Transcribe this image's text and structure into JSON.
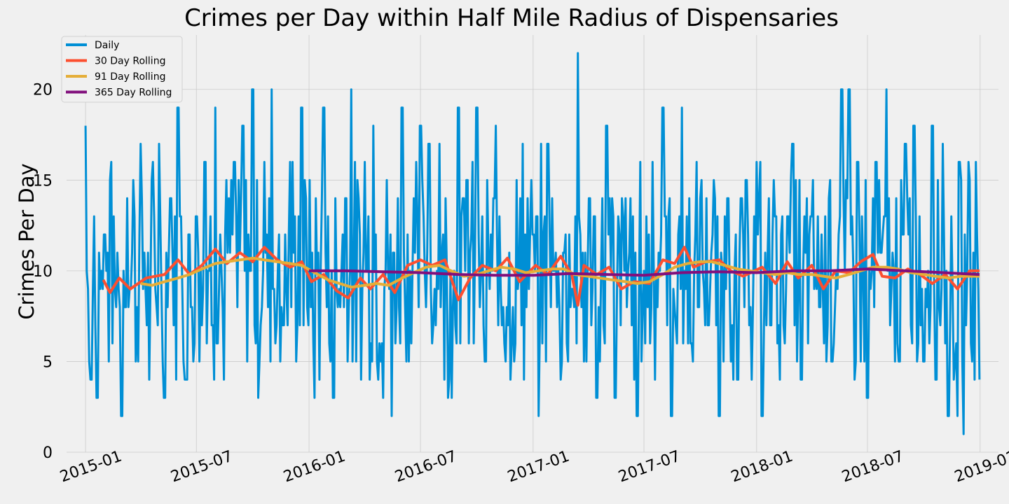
{
  "chart_data": {
    "type": "line",
    "title": "Crimes per Day within Half Mile Radius of Dispensaries",
    "xlabel": "",
    "ylabel": "Crimes Per Day",
    "x_range": [
      "2014-12-01",
      "2019-01-31"
    ],
    "ylim": [
      0,
      23
    ],
    "grid": true,
    "legend_position": "top-left",
    "x_ticks": [
      "2015-01",
      "2015-07",
      "2016-01",
      "2016-07",
      "2017-01",
      "2017-07",
      "2018-01",
      "2018-07",
      "2019-01"
    ],
    "y_ticks": [
      0,
      5,
      10,
      15,
      20
    ],
    "start_date": "2015-01-01",
    "end_date": "2018-12-31",
    "series": [
      {
        "name": "Daily",
        "color": "#008fd5",
        "points": [
          [
            "2015-01-01",
            18
          ],
          [
            "2015-01-05",
            9
          ],
          [
            "2015-01-10",
            4
          ],
          [
            "2015-01-15",
            13
          ],
          [
            "2015-01-20",
            3
          ],
          [
            "2015-02-01",
            12
          ],
          [
            "2015-02-10",
            15
          ],
          [
            "2015-02-20",
            8
          ],
          [
            "2015-03-01",
            2
          ],
          [
            "2015-03-10",
            14
          ],
          [
            "2015-03-20",
            15
          ],
          [
            "2015-04-01",
            17
          ],
          [
            "2015-04-15",
            4
          ],
          [
            "2015-05-01",
            17
          ],
          [
            "2015-05-10",
            3
          ],
          [
            "2015-05-20",
            14
          ],
          [
            "2015-06-01",
            19
          ],
          [
            "2015-06-15",
            4
          ],
          [
            "2015-07-01",
            13
          ],
          [
            "2015-07-15",
            16
          ],
          [
            "2015-08-01",
            19
          ],
          [
            "2015-08-15",
            4
          ],
          [
            "2015-09-01",
            16
          ],
          [
            "2015-09-15",
            18
          ],
          [
            "2015-10-01",
            20
          ],
          [
            "2015-10-10",
            3
          ],
          [
            "2015-10-20",
            16
          ],
          [
            "2015-11-01",
            20
          ],
          [
            "2015-11-15",
            5
          ],
          [
            "2015-12-01",
            16
          ],
          [
            "2015-12-20",
            19
          ],
          [
            "2016-01-10",
            3
          ],
          [
            "2016-01-25",
            19
          ],
          [
            "2016-02-10",
            3
          ],
          [
            "2016-03-01",
            14
          ],
          [
            "2016-03-10",
            20
          ],
          [
            "2016-04-01",
            16
          ],
          [
            "2016-04-15",
            18
          ],
          [
            "2016-05-01",
            3
          ],
          [
            "2016-05-15",
            2
          ],
          [
            "2016-06-01",
            19
          ],
          [
            "2016-06-20",
            14
          ],
          [
            "2016-07-01",
            18
          ],
          [
            "2016-07-15",
            17
          ],
          [
            "2016-08-01",
            17
          ],
          [
            "2016-08-15",
            3
          ],
          [
            "2016-09-01",
            19
          ],
          [
            "2016-09-15",
            15
          ],
          [
            "2016-10-01",
            19
          ],
          [
            "2016-10-15",
            5
          ],
          [
            "2016-11-01",
            18
          ],
          [
            "2016-12-01",
            5
          ],
          [
            "2016-12-15",
            17
          ],
          [
            "2017-01-01",
            12
          ],
          [
            "2017-01-10",
            2
          ],
          [
            "2017-01-25",
            17
          ],
          [
            "2017-02-15",
            4
          ],
          [
            "2017-03-01",
            12
          ],
          [
            "2017-03-15",
            22
          ],
          [
            "2017-03-25",
            5
          ],
          [
            "2017-04-15",
            3
          ],
          [
            "2017-05-01",
            18
          ],
          [
            "2017-05-15",
            3
          ],
          [
            "2017-06-01",
            14
          ],
          [
            "2017-06-20",
            2
          ],
          [
            "2017-07-15",
            16
          ],
          [
            "2017-08-01",
            19
          ],
          [
            "2017-08-15",
            2
          ],
          [
            "2017-09-01",
            19
          ],
          [
            "2017-09-15",
            6
          ],
          [
            "2017-10-01",
            14
          ],
          [
            "2017-11-01",
            2
          ],
          [
            "2017-11-15",
            14
          ],
          [
            "2017-12-01",
            4
          ],
          [
            "2018-01-01",
            16
          ],
          [
            "2018-01-10",
            2
          ],
          [
            "2018-02-01",
            13
          ],
          [
            "2018-03-01",
            17
          ],
          [
            "2018-03-15",
            4
          ],
          [
            "2018-04-01",
            13
          ],
          [
            "2018-05-01",
            15
          ],
          [
            "2018-05-20",
            20
          ],
          [
            "2018-06-01",
            20
          ],
          [
            "2018-06-15",
            16
          ],
          [
            "2018-07-01",
            3
          ],
          [
            "2018-07-15",
            16
          ],
          [
            "2018-08-01",
            20
          ],
          [
            "2018-08-15",
            5
          ],
          [
            "2018-09-01",
            17
          ],
          [
            "2018-09-15",
            18
          ],
          [
            "2018-10-01",
            5
          ],
          [
            "2018-10-15",
            18
          ],
          [
            "2018-11-01",
            17
          ],
          [
            "2018-11-10",
            2
          ],
          [
            "2018-11-25",
            2
          ],
          [
            "2018-12-05",
            1
          ],
          [
            "2018-12-15",
            15
          ],
          [
            "2018-12-25",
            16
          ],
          [
            "2018-12-31",
            4
          ]
        ]
      },
      {
        "name": "30 Day Rolling",
        "color": "#fc4f30",
        "points": [
          [
            "2015-01-30",
            9.5
          ],
          [
            "2015-02-10",
            8.8
          ],
          [
            "2015-02-25",
            9.6
          ],
          [
            "2015-03-15",
            9.0
          ],
          [
            "2015-04-10",
            9.6
          ],
          [
            "2015-05-10",
            9.8
          ],
          [
            "2015-06-01",
            10.6
          ],
          [
            "2015-06-20",
            9.8
          ],
          [
            "2015-07-10",
            10.3
          ],
          [
            "2015-08-01",
            11.2
          ],
          [
            "2015-08-20",
            10.4
          ],
          [
            "2015-09-10",
            11.0
          ],
          [
            "2015-10-01",
            10.5
          ],
          [
            "2015-10-20",
            11.3
          ],
          [
            "2015-11-10",
            10.6
          ],
          [
            "2015-12-01",
            10.2
          ],
          [
            "2015-12-20",
            10.5
          ],
          [
            "2016-01-05",
            9.4
          ],
          [
            "2016-01-25",
            9.8
          ],
          [
            "2016-02-15",
            8.9
          ],
          [
            "2016-03-05",
            8.5
          ],
          [
            "2016-03-25",
            9.6
          ],
          [
            "2016-04-10",
            9.0
          ],
          [
            "2016-05-01",
            9.8
          ],
          [
            "2016-05-20",
            8.8
          ],
          [
            "2016-06-10",
            10.3
          ],
          [
            "2016-07-01",
            10.6
          ],
          [
            "2016-07-20",
            10.3
          ],
          [
            "2016-08-10",
            10.6
          ],
          [
            "2016-09-01",
            8.4
          ],
          [
            "2016-09-20",
            9.6
          ],
          [
            "2016-10-10",
            10.3
          ],
          [
            "2016-11-01",
            10.0
          ],
          [
            "2016-11-20",
            10.7
          ],
          [
            "2016-12-10",
            9.4
          ],
          [
            "2017-01-05",
            10.3
          ],
          [
            "2017-01-25",
            9.8
          ],
          [
            "2017-02-15",
            10.8
          ],
          [
            "2017-03-05",
            9.8
          ],
          [
            "2017-03-15",
            8.1
          ],
          [
            "2017-03-25",
            10.3
          ],
          [
            "2017-04-15",
            9.8
          ],
          [
            "2017-05-05",
            10.2
          ],
          [
            "2017-05-25",
            9.0
          ],
          [
            "2017-06-15",
            9.4
          ],
          [
            "2017-07-10",
            9.3
          ],
          [
            "2017-08-01",
            10.6
          ],
          [
            "2017-08-20",
            10.4
          ],
          [
            "2017-09-05",
            11.3
          ],
          [
            "2017-09-20",
            10.2
          ],
          [
            "2017-10-10",
            10.5
          ],
          [
            "2017-11-01",
            10.6
          ],
          [
            "2017-11-20",
            10.0
          ],
          [
            "2017-12-10",
            9.7
          ],
          [
            "2018-01-10",
            10.2
          ],
          [
            "2018-02-01",
            9.3
          ],
          [
            "2018-02-20",
            10.5
          ],
          [
            "2018-03-10",
            9.6
          ],
          [
            "2018-04-01",
            10.3
          ],
          [
            "2018-04-20",
            9.0
          ],
          [
            "2018-05-10",
            10.0
          ],
          [
            "2018-06-01",
            9.9
          ],
          [
            "2018-06-20",
            10.5
          ],
          [
            "2018-07-10",
            10.9
          ],
          [
            "2018-07-25",
            9.7
          ],
          [
            "2018-08-15",
            9.6
          ],
          [
            "2018-09-05",
            10.1
          ],
          [
            "2018-09-25",
            9.8
          ],
          [
            "2018-10-15",
            9.3
          ],
          [
            "2018-11-05",
            9.8
          ],
          [
            "2018-11-25",
            9.0
          ],
          [
            "2018-12-15",
            10.0
          ],
          [
            "2018-12-31",
            10.0
          ]
        ]
      },
      {
        "name": "91 Day Rolling",
        "color": "#e5ae38",
        "points": [
          [
            "2015-04-01",
            9.3
          ],
          [
            "2015-04-20",
            9.2
          ],
          [
            "2015-05-10",
            9.4
          ],
          [
            "2015-06-01",
            9.6
          ],
          [
            "2015-06-20",
            9.8
          ],
          [
            "2015-07-10",
            10.1
          ],
          [
            "2015-08-01",
            10.4
          ],
          [
            "2015-08-20",
            10.5
          ],
          [
            "2015-09-10",
            10.6
          ],
          [
            "2015-10-01",
            10.7
          ],
          [
            "2015-10-20",
            10.6
          ],
          [
            "2015-11-10",
            10.5
          ],
          [
            "2015-12-01",
            10.4
          ],
          [
            "2015-12-20",
            10.3
          ],
          [
            "2016-01-10",
            9.9
          ],
          [
            "2016-02-01",
            9.5
          ],
          [
            "2016-02-20",
            9.3
          ],
          [
            "2016-03-10",
            9.1
          ],
          [
            "2016-04-01",
            9.2
          ],
          [
            "2016-04-20",
            9.3
          ],
          [
            "2016-05-10",
            9.2
          ],
          [
            "2016-06-01",
            9.6
          ],
          [
            "2016-06-20",
            9.9
          ],
          [
            "2016-07-10",
            10.2
          ],
          [
            "2016-08-01",
            10.3
          ],
          [
            "2016-08-20",
            10.0
          ],
          [
            "2016-09-10",
            9.7
          ],
          [
            "2016-10-01",
            9.8
          ],
          [
            "2016-10-20",
            10.0
          ],
          [
            "2016-11-10",
            10.2
          ],
          [
            "2016-12-01",
            10.1
          ],
          [
            "2016-12-20",
            9.9
          ],
          [
            "2017-01-10",
            10.0
          ],
          [
            "2017-02-01",
            10.1
          ],
          [
            "2017-02-20",
            10.1
          ],
          [
            "2017-03-10",
            9.8
          ],
          [
            "2017-04-01",
            9.7
          ],
          [
            "2017-04-20",
            9.6
          ],
          [
            "2017-05-10",
            9.5
          ],
          [
            "2017-06-01",
            9.4
          ],
          [
            "2017-06-20",
            9.3
          ],
          [
            "2017-07-10",
            9.4
          ],
          [
            "2017-08-01",
            9.8
          ],
          [
            "2017-08-20",
            10.2
          ],
          [
            "2017-09-10",
            10.4
          ],
          [
            "2017-10-01",
            10.5
          ],
          [
            "2017-10-20",
            10.5
          ],
          [
            "2017-11-10",
            10.3
          ],
          [
            "2017-12-01",
            10.1
          ],
          [
            "2017-12-20",
            10.0
          ],
          [
            "2018-01-10",
            9.9
          ],
          [
            "2018-02-01",
            9.8
          ],
          [
            "2018-02-20",
            9.9
          ],
          [
            "2018-03-10",
            9.8
          ],
          [
            "2018-04-01",
            9.8
          ],
          [
            "2018-04-20",
            9.7
          ],
          [
            "2018-05-10",
            9.6
          ],
          [
            "2018-06-01",
            9.8
          ],
          [
            "2018-06-20",
            10.0
          ],
          [
            "2018-07-10",
            10.2
          ],
          [
            "2018-08-01",
            10.2
          ],
          [
            "2018-08-20",
            10.1
          ],
          [
            "2018-09-10",
            9.9
          ],
          [
            "2018-10-01",
            9.8
          ],
          [
            "2018-10-20",
            9.7
          ],
          [
            "2018-11-10",
            9.6
          ],
          [
            "2018-12-01",
            9.7
          ],
          [
            "2018-12-20",
            9.7
          ],
          [
            "2018-12-31",
            9.7
          ]
        ]
      },
      {
        "name": "365 Day Rolling",
        "color": "#810f7c",
        "points": [
          [
            "2016-01-01",
            10.0
          ],
          [
            "2016-03-01",
            10.0
          ],
          [
            "2016-05-01",
            9.95
          ],
          [
            "2016-07-01",
            9.9
          ],
          [
            "2016-09-01",
            9.8
          ],
          [
            "2016-11-01",
            9.75
          ],
          [
            "2017-01-01",
            9.75
          ],
          [
            "2017-03-01",
            9.85
          ],
          [
            "2017-05-01",
            9.8
          ],
          [
            "2017-07-01",
            9.75
          ],
          [
            "2017-09-01",
            9.9
          ],
          [
            "2017-11-01",
            9.95
          ],
          [
            "2018-01-01",
            9.9
          ],
          [
            "2018-03-01",
            10.0
          ],
          [
            "2018-05-01",
            10.0
          ],
          [
            "2018-07-01",
            10.1
          ],
          [
            "2018-09-01",
            10.0
          ],
          [
            "2018-11-01",
            9.9
          ],
          [
            "2018-12-31",
            9.8
          ]
        ]
      }
    ]
  }
}
